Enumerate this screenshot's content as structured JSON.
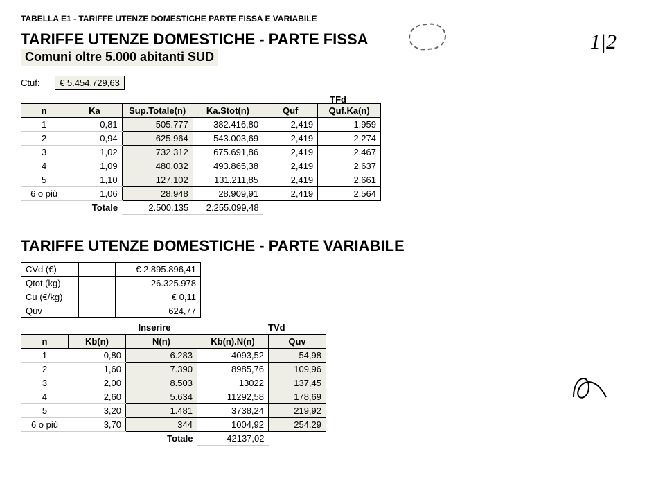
{
  "header": {
    "small_title": "TABELLA E1 - TARIFFE UTENZE DOMESTICHE PARTE FISSA E VARIABILE",
    "big_title": "TARIFFE UTENZE DOMESTICHE - PARTE FISSA",
    "subtitle": "Comuni oltre 5.000 abitanti SUD",
    "ctuf_label": "Ctuf:",
    "ctuf_value": "€   5.454.729,63",
    "tfd_label": "TFd",
    "page_mark": "1|2"
  },
  "table1": {
    "columns": [
      "n",
      "Ka",
      "Sup.Totale(n)",
      "Ka.Stot(n)",
      "Quf",
      "Quf.Ka(n)"
    ],
    "rows": [
      [
        "1",
        "0,81",
        "505.777",
        "382.416,80",
        "2,419",
        "1,959"
      ],
      [
        "2",
        "0,94",
        "625.964",
        "543.003,69",
        "2,419",
        "2,274"
      ],
      [
        "3",
        "1,02",
        "732.312",
        "675.691,86",
        "2,419",
        "2,467"
      ],
      [
        "4",
        "1,09",
        "480.032",
        "493.865,38",
        "2,419",
        "2,637"
      ],
      [
        "5",
        "1,10",
        "127.102",
        "131.211,85",
        "2,419",
        "2,661"
      ],
      [
        "6 o più",
        "1,06",
        "28.948",
        "28.909,91",
        "2,419",
        "2,564"
      ]
    ],
    "totale_label": "Totale",
    "totale_vals": [
      "2.500.135",
      "2.255.099,48"
    ]
  },
  "section2": {
    "title": "TARIFFE UTENZE DOMESTICHE - PARTE VARIABILE",
    "params": [
      [
        "CVd (€)",
        "€   2.895.896,41"
      ],
      [
        "Qtot (kg)",
        "26.325.978"
      ],
      [
        "Cu (€/kg)",
        "€             0,11"
      ],
      [
        "Quv",
        "624,77"
      ]
    ],
    "inserire": "Inserire",
    "tvd": "TVd"
  },
  "table2": {
    "columns": [
      "n",
      "Kb(n)",
      "N(n)",
      "Kb(n).N(n)",
      "Quv"
    ],
    "rows": [
      [
        "1",
        "0,80",
        "6.283",
        "4093,52",
        "54,98"
      ],
      [
        "2",
        "1,60",
        "7.390",
        "8985,76",
        "109,96"
      ],
      [
        "3",
        "2,00",
        "8.503",
        "13022",
        "137,45"
      ],
      [
        "4",
        "2,60",
        "5.634",
        "11292,58",
        "178,69"
      ],
      [
        "5",
        "3,20",
        "1.481",
        "3738,24",
        "219,92"
      ],
      [
        "6 o più",
        "3,70",
        "344",
        "1004,92",
        "254,29"
      ]
    ],
    "totale_label": "Totale",
    "totale_val": "42137,02"
  },
  "style": {
    "background": "#ffffff",
    "text_color": "#000000",
    "header_bg": "#eeeee6",
    "border_color": "#000000",
    "font_size_body": 13,
    "font_size_big": 22,
    "font_size_small_title": 12
  }
}
